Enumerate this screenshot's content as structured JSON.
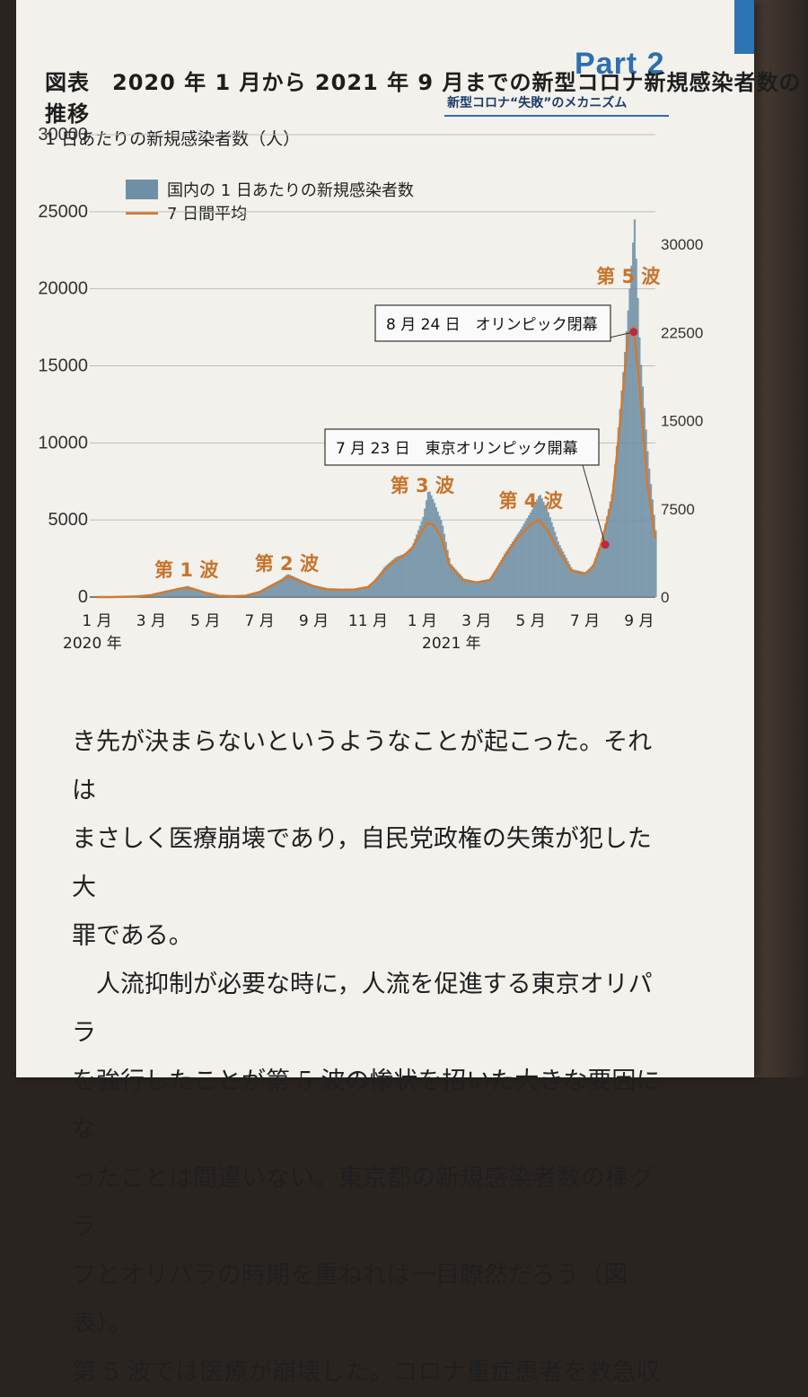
{
  "header": {
    "part": "Part 2",
    "subtitle": "新型コロナ“失敗”のメカニズム"
  },
  "figure": {
    "title": "図表　2020 年 1 月から 2021 年 9 月までの新型コロナ新規感染者数の推移",
    "ylabel": "1 日あたりの新規感染者数（人）",
    "legend": {
      "bars": "国内の 1 日あたりの新規感染者数",
      "line": "7 日間平均"
    },
    "annotations": {
      "tokyo_open": "7 月 23 日　東京オリンピック開幕",
      "closing": "8 月 24 日　オリンピック閉幕"
    },
    "year_labels": {
      "y2020": "2020 年",
      "y2021": "2021 年"
    }
  },
  "chart_data": {
    "type": "bar",
    "title": "図表　2020 年 1 月から 2021 年 9 月までの新型コロナ新規感染者数の推移",
    "ylabel": "1 日あたりの新規感染者数（人）",
    "xlabel": "",
    "ylim": [
      0,
      30000
    ],
    "yticks": [
      0,
      5000,
      10000,
      15000,
      20000,
      25000,
      30000
    ],
    "right_ylim": [
      0,
      30000
    ],
    "right_yticks": [
      0,
      7500,
      15000,
      22500,
      30000
    ],
    "x_month_labels": [
      "1 月",
      "3 月",
      "5 月",
      "7 月",
      "9 月",
      "11 月",
      "1 月",
      "3 月",
      "5 月",
      "7 月",
      "9 月"
    ],
    "x_month_index": [
      0,
      2,
      4,
      6,
      8,
      10,
      12,
      14,
      16,
      18,
      20
    ],
    "months": [
      "2020-01",
      "2020-02",
      "2020-03",
      "2020-04",
      "2020-05",
      "2020-06",
      "2020-07",
      "2020-08",
      "2020-09",
      "2020-10",
      "2020-11",
      "2020-12",
      "2021-01",
      "2021-02",
      "2021-03",
      "2021-04",
      "2021-05",
      "2021-06",
      "2021-07",
      "2021-08",
      "2021-09"
    ],
    "waves": [
      {
        "label": "第 1 波",
        "month": 3.3
      },
      {
        "label": "第 2 波",
        "month": 7.0
      },
      {
        "label": "第 3 波",
        "month": 12.0
      },
      {
        "label": "第 4 波",
        "month": 16.0
      },
      {
        "label": "第 5 波",
        "month": 19.6
      }
    ],
    "series": [
      {
        "name": "国内の 1 日あたりの新規感染者数",
        "x": [
          0,
          0.5,
          1,
          1.5,
          2,
          2.5,
          3,
          3.3,
          3.6,
          4,
          4.5,
          5,
          5.5,
          6,
          6.5,
          6.8,
          7,
          7.2,
          7.5,
          8,
          8.5,
          9,
          9.5,
          10,
          10.3,
          10.6,
          11,
          11.3,
          11.6,
          12,
          12.2,
          12.4,
          12.7,
          13,
          13.5,
          14,
          14.5,
          15,
          15.3,
          15.6,
          16,
          16.3,
          16.6,
          17,
          17.5,
          18,
          18.3,
          18.6,
          19,
          19.2,
          19.4,
          19.6,
          19.8,
          20,
          20.3,
          20.6
        ],
        "values": [
          0,
          0,
          20,
          50,
          150,
          400,
          600,
          720,
          550,
          300,
          80,
          50,
          100,
          400,
          900,
          1200,
          1500,
          1350,
          1100,
          700,
          500,
          480,
          500,
          700,
          1300,
          2000,
          2600,
          2800,
          3300,
          5200,
          7000,
          6200,
          4800,
          2200,
          1200,
          1000,
          1200,
          2800,
          3600,
          4400,
          5600,
          6700,
          5600,
          3500,
          1800,
          1600,
          2200,
          3800,
          7000,
          11000,
          15000,
          19500,
          24500,
          16000,
          9000,
          4000
        ]
      },
      {
        "name": "7 日間平均",
        "x": [
          0,
          0.5,
          1,
          1.5,
          2,
          2.5,
          3,
          3.3,
          3.6,
          4,
          4.5,
          5,
          5.5,
          6,
          6.5,
          6.8,
          7,
          7.2,
          7.5,
          8,
          8.5,
          9,
          9.5,
          10,
          10.3,
          10.6,
          11,
          11.3,
          11.6,
          12,
          12.2,
          12.4,
          12.7,
          13,
          13.5,
          14,
          14.5,
          15,
          15.3,
          15.6,
          16,
          16.3,
          16.6,
          17,
          17.5,
          18,
          18.3,
          18.6,
          19,
          19.2,
          19.4,
          19.6,
          19.8,
          20,
          20.3,
          20.6
        ],
        "values": [
          0,
          0,
          15,
          40,
          120,
          330,
          520,
          620,
          500,
          280,
          80,
          50,
          90,
          330,
          800,
          1050,
          1300,
          1250,
          1050,
          700,
          500,
          470,
          490,
          650,
          1100,
          1750,
          2350,
          2650,
          3100,
          4300,
          4800,
          4700,
          3900,
          2100,
          1100,
          950,
          1100,
          2500,
          3300,
          4000,
          4700,
          5000,
          4400,
          3100,
          1700,
          1500,
          1950,
          3400,
          6200,
          9500,
          13200,
          17000,
          17500,
          14000,
          7500,
          3800
        ]
      }
    ],
    "markers": [
      {
        "label": "7 月 23 日　東京オリンピック開幕",
        "x": 18.75,
        "y": 3400
      },
      {
        "label": "8 月 24 日　オリンピック閉幕",
        "x": 19.8,
        "y": 17200
      }
    ]
  },
  "body_text": [
    "き先が決まらないというようなことが起こった。それは",
    "まさしく医療崩壊であり，自民党政権の失策が犯した大",
    "罪である。",
    "人流抑制が必要な時に，人流を促進する東京オリパラ",
    "を強行したことが第 5 波の惨状を招いた大きな要因にな",
    "ったことは間違いない。東京都の新規感染者数の棒グラ",
    "フとオリパラの時期を重ねれば一目瞭然だろう（図表）。",
    "第 5 波では医療が崩壊した。コロナ重症患者を救急収"
  ],
  "colors": {
    "bars": "#6f8fa6",
    "line": "#d07a30",
    "marker": "#c0283a",
    "wave_label": "#c8742c",
    "accent": "#2d6fb0"
  }
}
